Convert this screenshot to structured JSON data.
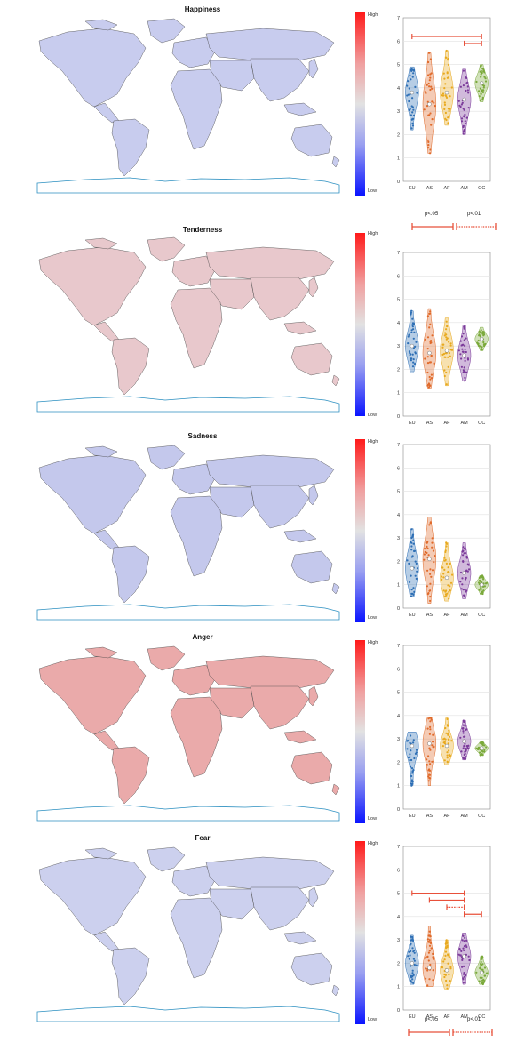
{
  "colorbar": {
    "high_label": "High",
    "low_label": "Low"
  },
  "significance_legend": {
    "p05_label": "p<.05",
    "p01_label": "p<.01",
    "color": "#e8503a"
  },
  "chart_data": [
    {
      "type": "violin",
      "title": "Happiness",
      "categories": [
        "EU",
        "AS",
        "AF",
        "AM",
        "OC"
      ],
      "colors": [
        "#2e6fb5",
        "#e06a2a",
        "#e8a91e",
        "#7b3a9a",
        "#7aa93a"
      ],
      "ylim": [
        0,
        7
      ],
      "yticks": [
        0,
        1,
        2,
        3,
        4,
        5,
        6,
        7
      ],
      "grid": true,
      "medians": [
        3.8,
        3.3,
        3.8,
        3.5,
        4.2
      ],
      "ranges": [
        [
          2.2,
          4.9
        ],
        [
          1.2,
          5.5
        ],
        [
          2.4,
          5.6
        ],
        [
          2.0,
          4.8
        ],
        [
          3.4,
          5.0
        ]
      ],
      "significance": [
        {
          "from": "EU",
          "to": "OC",
          "y": 6.2,
          "level": "p<.05"
        },
        {
          "from": "AM",
          "to": "OC",
          "y": 5.9,
          "level": "p<.05"
        }
      ]
    },
    {
      "type": "violin",
      "title": "Tenderness",
      "categories": [
        "EU",
        "AS",
        "AF",
        "AM",
        "OC"
      ],
      "colors": [
        "#2e6fb5",
        "#e06a2a",
        "#e8a91e",
        "#7b3a9a",
        "#7aa93a"
      ],
      "ylim": [
        0,
        7
      ],
      "yticks": [
        0,
        1,
        2,
        3,
        4,
        5,
        6,
        7
      ],
      "grid": true,
      "medians": [
        3.0,
        2.7,
        2.8,
        2.6,
        3.3
      ],
      "ranges": [
        [
          1.9,
          4.5
        ],
        [
          1.2,
          4.6
        ],
        [
          1.3,
          4.2
        ],
        [
          1.5,
          3.9
        ],
        [
          2.8,
          3.8
        ]
      ],
      "significance": []
    },
    {
      "type": "violin",
      "title": "Sadness",
      "categories": [
        "EU",
        "AS",
        "AF",
        "AM",
        "OC"
      ],
      "colors": [
        "#2e6fb5",
        "#e06a2a",
        "#e8a91e",
        "#7b3a9a",
        "#7aa93a"
      ],
      "ylim": [
        0,
        7
      ],
      "yticks": [
        0,
        1,
        2,
        3,
        4,
        5,
        6,
        7
      ],
      "grid": true,
      "medians": [
        1.7,
        2.1,
        1.3,
        1.5,
        1.0
      ],
      "ranges": [
        [
          0.5,
          3.4
        ],
        [
          0.2,
          3.9
        ],
        [
          0.3,
          2.8
        ],
        [
          0.4,
          2.8
        ],
        [
          0.6,
          1.4
        ]
      ],
      "significance": []
    },
    {
      "type": "violin",
      "title": "Anger",
      "categories": [
        "EU",
        "AS",
        "AF",
        "AM",
        "OC"
      ],
      "colors": [
        "#2e6fb5",
        "#e06a2a",
        "#e8a91e",
        "#7b3a9a",
        "#7aa93a"
      ],
      "ylim": [
        0,
        7
      ],
      "yticks": [
        0,
        1,
        2,
        3,
        4,
        5,
        6,
        7
      ],
      "grid": true,
      "medians": [
        2.7,
        2.8,
        2.7,
        2.9,
        2.6
      ],
      "ranges": [
        [
          1.0,
          3.3
        ],
        [
          1.0,
          3.9
        ],
        [
          1.9,
          3.9
        ],
        [
          2.1,
          3.8
        ],
        [
          2.3,
          2.9
        ]
      ],
      "significance": []
    },
    {
      "type": "violin",
      "title": "Fear",
      "categories": [
        "EU",
        "AS",
        "AF",
        "AM",
        "OC"
      ],
      "colors": [
        "#2e6fb5",
        "#e06a2a",
        "#e8a91e",
        "#7b3a9a",
        "#7aa93a"
      ],
      "ylim": [
        0,
        7
      ],
      "yticks": [
        0,
        1,
        2,
        3,
        4,
        5,
        6,
        7
      ],
      "grid": true,
      "medians": [
        2.0,
        1.8,
        1.7,
        2.3,
        1.6
      ],
      "ranges": [
        [
          1.1,
          3.2
        ],
        [
          1.0,
          3.6
        ],
        [
          0.9,
          3.0
        ],
        [
          1.1,
          3.3
        ],
        [
          1.1,
          2.3
        ]
      ],
      "significance": [
        {
          "from": "EU",
          "to": "AM",
          "y": 5.0,
          "level": "p<.05"
        },
        {
          "from": "AS",
          "to": "AM",
          "y": 4.7,
          "level": "p<.05"
        },
        {
          "from": "AF",
          "to": "AM",
          "y": 4.4,
          "level": "p<.01"
        },
        {
          "from": "AM",
          "to": "OC",
          "y": 4.1,
          "level": "p<.05"
        }
      ]
    }
  ]
}
